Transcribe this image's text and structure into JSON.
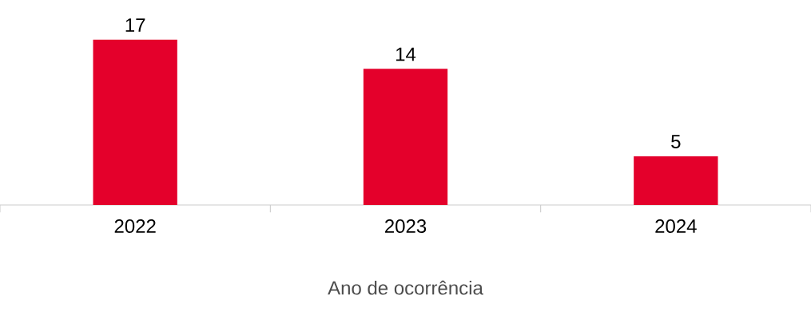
{
  "chart_data": {
    "type": "bar",
    "xlabel": "Ano de ocorrência",
    "categories": [
      "2022",
      "2023",
      "2024"
    ],
    "values": [
      17,
      14,
      5
    ],
    "color": "#e4002b",
    "data_labels": true
  }
}
